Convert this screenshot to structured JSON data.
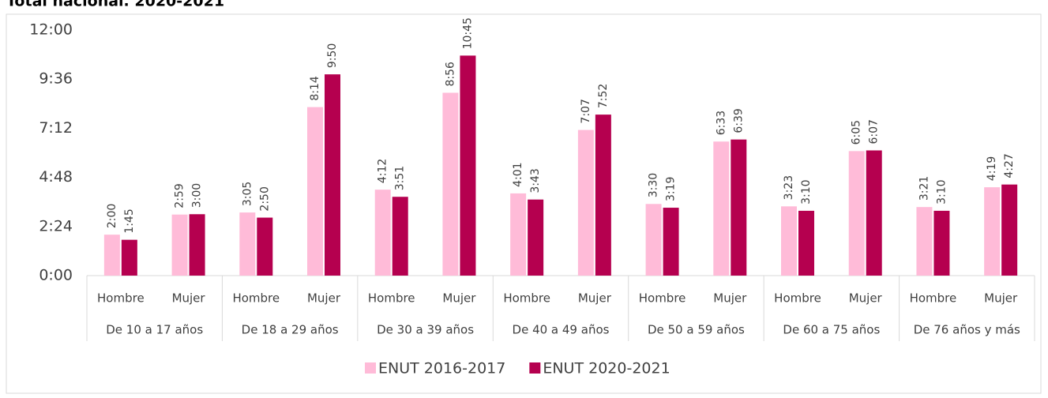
{
  "chart_data": {
    "type": "bar",
    "title": "Total nacional. 2020-2021",
    "groups": [
      "De 10 a 17 años",
      "De 18 a 29 años",
      "De 30 a 39 años",
      "De 40 a 49 años",
      "De 50 a 59 años",
      "De 60 a 75 años",
      "De 76 años y más"
    ],
    "categories": [
      "Hombre",
      "Mujer",
      "Hombre",
      "Mujer",
      "Hombre",
      "Mujer",
      "Hombre",
      "Mujer",
      "Hombre",
      "Mujer",
      "Hombre",
      "Mujer",
      "Hombre",
      "Mujer"
    ],
    "series": [
      {
        "name": "ENUT 2016-2017",
        "color": "#ffbbd8",
        "values": [
          2,
          2.9833,
          3.0833,
          8.2333,
          4.2,
          8.9333,
          4.0167,
          7.1167,
          3.5,
          6.55,
          3.3833,
          6.0833,
          3.35,
          4.3167
        ],
        "value_labels": [
          "2:00",
          "2:59",
          "3:05",
          "8:14",
          "4:12",
          "8:56",
          "4:01",
          "7:07",
          "3:30",
          "6:33",
          "3:23",
          "6:05",
          "3:21",
          "4:19"
        ]
      },
      {
        "name": "ENUT 2020-2021",
        "color": "#b5004f",
        "values": [
          1.75,
          3,
          2.8333,
          9.8333,
          3.85,
          10.75,
          3.7167,
          7.8667,
          3.3167,
          6.65,
          3.1667,
          6.1167,
          3.1667,
          4.45
        ],
        "value_labels": [
          "1:45",
          "3:00",
          "2:50",
          "9:50",
          "3:51",
          "10:45",
          "3:43",
          "7:52",
          "3:19",
          "6:39",
          "3:10",
          "6:07",
          "3:10",
          "4:27"
        ]
      }
    ],
    "ylim": [
      0,
      12
    ],
    "yticks": [
      {
        "value": 0,
        "label": "0:00"
      },
      {
        "value": 2.4,
        "label": "2:24"
      },
      {
        "value": 4.8,
        "label": "4:48"
      },
      {
        "value": 7.2,
        "label": "7:12"
      },
      {
        "value": 9.6,
        "label": "9:36"
      },
      {
        "value": 12,
        "label": "12:00"
      }
    ],
    "legend": "bottom"
  }
}
